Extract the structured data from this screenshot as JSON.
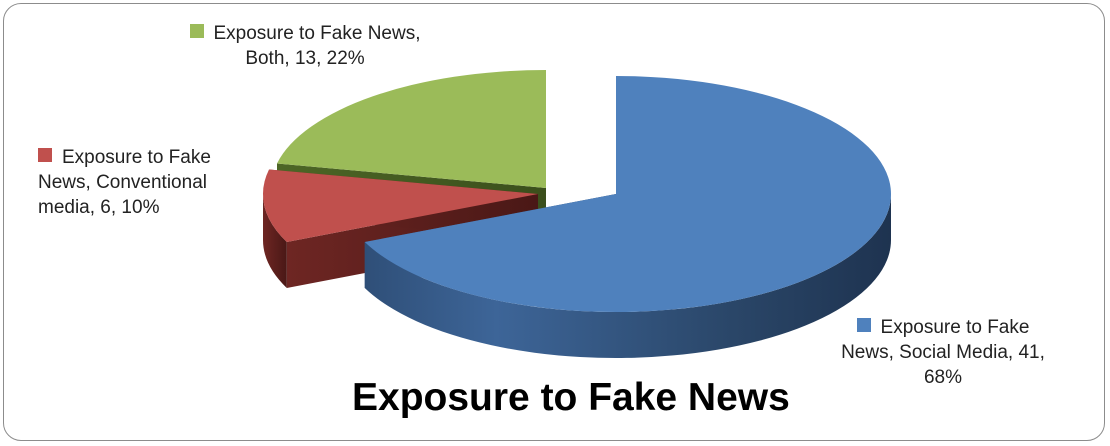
{
  "chart_data": {
    "type": "pie",
    "title": "Exposure to Fake News",
    "slices": [
      {
        "name": "Exposure to Fake News, Social Media",
        "value": 41,
        "percent": "68%",
        "color": "#4f81bd"
      },
      {
        "name": "Exposure to Fake News, Conventional media",
        "value": 6,
        "percent": "10%",
        "color": "#c0504d"
      },
      {
        "name": "Exposure to Fake News, Both",
        "value": 13,
        "percent": "22%",
        "color": "#9bbb59"
      }
    ],
    "labels": {
      "both": "Exposure to Fake News, Both, 13, 22%",
      "conventional": "Exposure to Fake News, Conventional media, 6, 10%",
      "social": "Exposure to Fake News, Social Media, 41, 68%"
    },
    "exploded": true,
    "style": "3d"
  }
}
